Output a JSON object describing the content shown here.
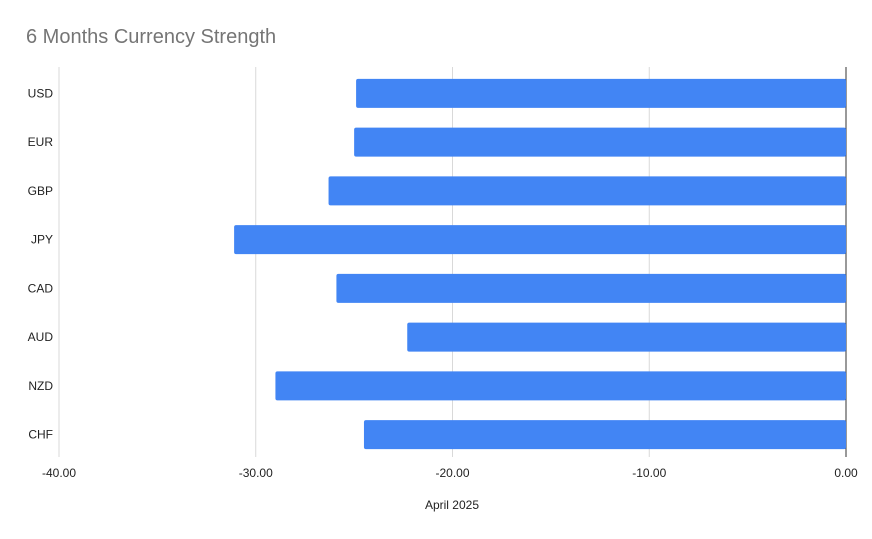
{
  "chart_data": {
    "type": "bar",
    "orientation": "horizontal",
    "title": "6 Months Currency Strength",
    "xlabel": "April 2025",
    "ylabel": "",
    "categories": [
      "USD",
      "EUR",
      "GBP",
      "JPY",
      "CAD",
      "AUD",
      "NZD",
      "CHF"
    ],
    "values": [
      -24.9,
      -25.0,
      -26.3,
      -31.1,
      -25.9,
      -22.3,
      -29.0,
      -24.5
    ],
    "xlim": [
      -40,
      0
    ],
    "xticks": [
      "-40.00",
      "-30.00",
      "-20.00",
      "-10.00",
      "0.00"
    ],
    "grid": true,
    "bar_color": "#4285f4"
  }
}
